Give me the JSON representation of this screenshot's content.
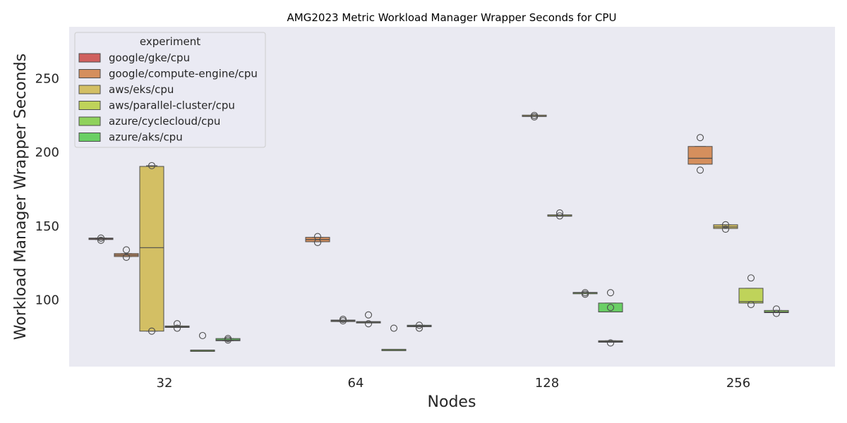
{
  "chart_data": {
    "type": "box",
    "title": "AMG2023 Metric Workload Manager Wrapper Seconds for CPU",
    "xlabel": "Nodes",
    "ylabel": "Workload Manager Wrapper Seconds",
    "categories": [
      "32",
      "64",
      "128",
      "256"
    ],
    "ylim": [
      55,
      285
    ],
    "yticks": [
      100,
      150,
      200,
      250
    ],
    "grid": false,
    "legend": {
      "title": "experiment",
      "placement": "upper-left"
    },
    "series": [
      {
        "name": "google/gke/cpu",
        "color": "#d0605e",
        "boxes": [
          {
            "category": "32",
            "q1": 141,
            "median": 141.5,
            "q3": 142,
            "whislo": 141,
            "whishi": 142,
            "fliers": [
              142,
              140.5
            ]
          },
          null,
          null,
          null
        ]
      },
      {
        "name": "google/compute-engine/cpu",
        "color": "#d58f5d",
        "boxes": [
          {
            "category": "32",
            "q1": 129.5,
            "median": 130.5,
            "q3": 131.5,
            "whislo": 129.5,
            "whishi": 131.5,
            "fliers": [
              134,
              129
            ]
          },
          {
            "category": "64",
            "q1": 139.5,
            "median": 141,
            "q3": 142.5,
            "whislo": 139.5,
            "whishi": 142.5,
            "fliers": [
              143,
              139
            ]
          },
          null,
          {
            "category": "256",
            "q1": 192,
            "median": 196,
            "q3": 204,
            "whislo": 192,
            "whishi": 204,
            "fliers": [
              210,
              188
            ]
          }
        ]
      },
      {
        "name": "aws/eks/cpu",
        "color": "#d3bf64",
        "boxes": [
          {
            "category": "32",
            "q1": 79,
            "median": 135.5,
            "q3": 190.5,
            "whislo": 79,
            "whishi": 191,
            "fliers": [
              191,
              79
            ]
          },
          {
            "category": "64",
            "q1": 85.5,
            "median": 86,
            "q3": 86.5,
            "whislo": 85.5,
            "whishi": 86.5,
            "fliers": [
              87,
              86
            ]
          },
          {
            "category": "128",
            "q1": 224.5,
            "median": 224.5,
            "q3": 225,
            "whislo": 224.5,
            "whishi": 225,
            "fliers": [
              225,
              224
            ]
          },
          {
            "category": "256",
            "q1": 148.5,
            "median": 149.5,
            "q3": 151,
            "whislo": 148.5,
            "whishi": 151,
            "fliers": [
              151,
              148
            ]
          }
        ]
      },
      {
        "name": "aws/parallel-cluster/cpu",
        "color": "#bfd35a",
        "boxes": [
          {
            "category": "32",
            "q1": 81.5,
            "median": 82,
            "q3": 82.5,
            "whislo": 81.5,
            "whishi": 82.5,
            "fliers": [
              84,
              81
            ]
          },
          {
            "category": "64",
            "q1": 85,
            "median": 85,
            "q3": 85,
            "whislo": 85,
            "whishi": 85,
            "fliers": [
              90,
              84
            ]
          },
          {
            "category": "128",
            "q1": 157,
            "median": 157,
            "q3": 157.5,
            "whislo": 157,
            "whishi": 157.5,
            "fliers": [
              159,
              157
            ]
          },
          {
            "category": "256",
            "q1": 98,
            "median": 99,
            "q3": 108,
            "whislo": 98,
            "whishi": 108,
            "fliers": [
              115,
              97
            ]
          }
        ]
      },
      {
        "name": "azure/cyclecloud/cpu",
        "color": "#8fd25c",
        "boxes": [
          {
            "category": "32",
            "q1": 65.5,
            "median": 65.5,
            "q3": 66,
            "whislo": 65.5,
            "whishi": 66,
            "fliers": [
              76
            ]
          },
          {
            "category": "64",
            "q1": 66,
            "median": 66,
            "q3": 66.5,
            "whislo": 66,
            "whishi": 66.5,
            "fliers": [
              81
            ]
          },
          {
            "category": "128",
            "q1": 104.5,
            "median": 105,
            "q3": 105,
            "whislo": 104.5,
            "whishi": 105,
            "fliers": [
              105,
              104
            ]
          },
          {
            "category": "256",
            "q1": 91.5,
            "median": 92,
            "q3": 93,
            "whislo": 91.5,
            "whishi": 93,
            "fliers": [
              94,
              91
            ]
          }
        ]
      },
      {
        "name": "azure/aks/cpu",
        "color": "#6acf65",
        "boxes": [
          {
            "category": "32",
            "q1": 72.5,
            "median": 73,
            "q3": 74,
            "whislo": 72.5,
            "whishi": 74,
            "fliers": [
              74,
              73
            ]
          },
          {
            "category": "64",
            "q1": 82,
            "median": 82.5,
            "q3": 83,
            "whislo": 82,
            "whishi": 83,
            "fliers": [
              83,
              81
            ]
          },
          {
            "category": "128",
            "q1": 92,
            "median": 92,
            "q3": 98,
            "whislo": 92,
            "whishi": 98,
            "fliers": [
              105
            ]
          },
          null
        ]
      }
    ],
    "extra_boxes": [
      {
        "category": "128",
        "slot": 5,
        "color": "#bfd35a",
        "q1": 71.5,
        "median": 72,
        "q3": 72.5,
        "whislo": 71.5,
        "whishi": 72.5,
        "fliers": [
          95,
          71
        ]
      }
    ],
    "style": {
      "plot_background": "#eaeaf2",
      "box_edge": "#4d4d4d",
      "flier_edge": "#4d4d4d"
    }
  }
}
